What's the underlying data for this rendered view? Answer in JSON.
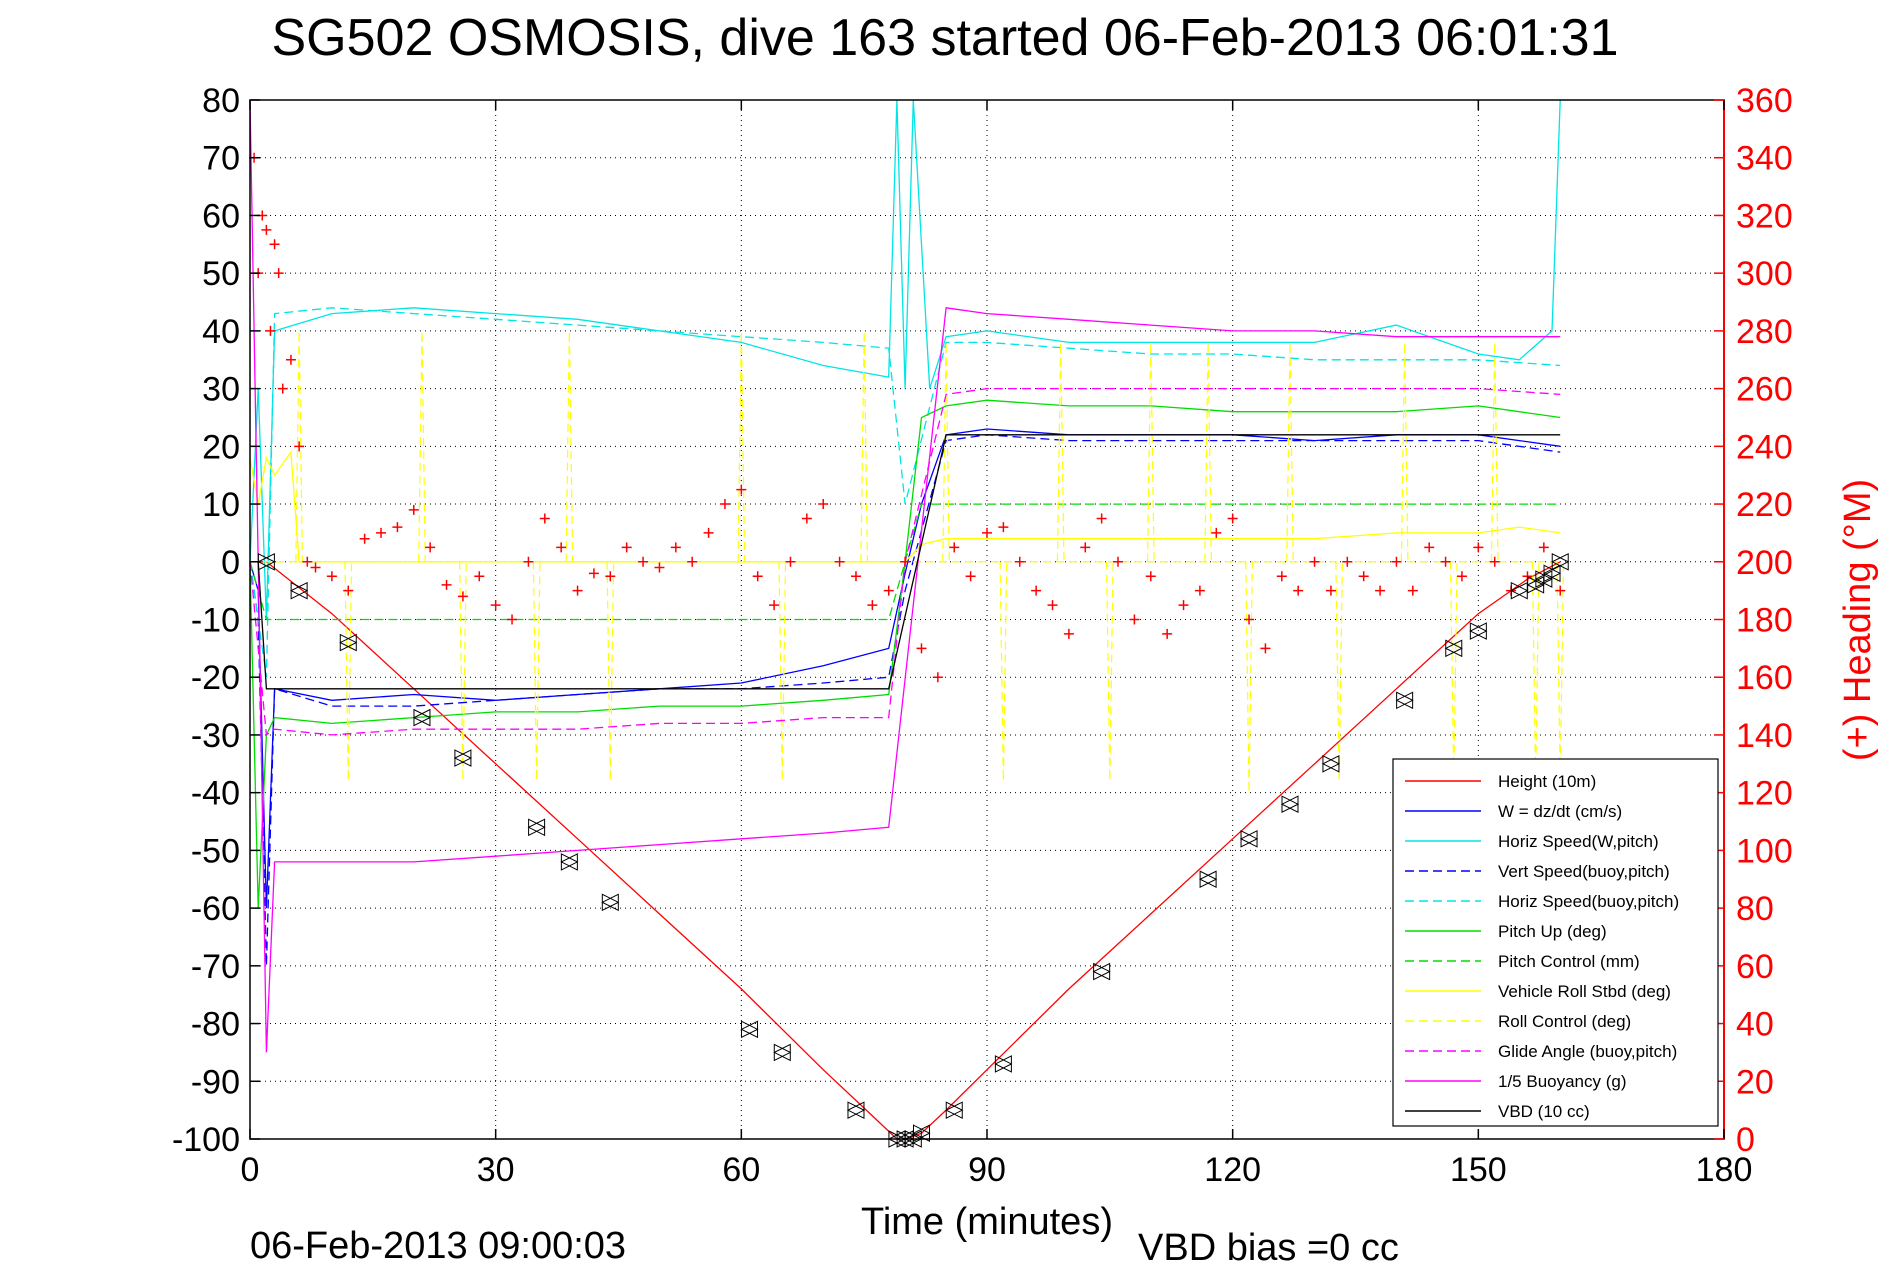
{
  "chart_data": {
    "type": "line",
    "title": "SG502 OSMOSIS, dive 163 started 06-Feb-2013 06:01:31",
    "xlabel": "Time (minutes)",
    "ylabel": "",
    "y2label": "(+) Heading (°M)",
    "footer_left": "06-Feb-2013 09:00:03",
    "footer_right": "VBD bias =0 cc",
    "xlim": [
      0,
      180
    ],
    "ylim": [
      -100,
      80
    ],
    "y2lim": [
      0,
      360
    ],
    "xticks": [
      0,
      30,
      60,
      90,
      120,
      150,
      180
    ],
    "yticks": [
      -100,
      -90,
      -80,
      -70,
      -60,
      -50,
      -40,
      -30,
      -20,
      -10,
      0,
      10,
      20,
      30,
      40,
      50,
      60,
      70,
      80
    ],
    "y2ticks": [
      0,
      20,
      40,
      60,
      80,
      100,
      120,
      140,
      160,
      180,
      200,
      220,
      240,
      260,
      280,
      300,
      320,
      340,
      360
    ],
    "grid": true,
    "legend_position": "bottom-right",
    "series": [
      {
        "name": "Height (10m)",
        "color": "#ff0000",
        "style": "solid",
        "x": [
          0,
          2,
          10,
          20,
          30,
          40,
          50,
          60,
          70,
          76,
          79,
          80,
          82,
          85,
          90,
          100,
          110,
          120,
          130,
          140,
          150,
          156,
          160
        ],
        "y": [
          0,
          0,
          -9,
          -22,
          -35,
          -48,
          -61,
          -74,
          -88,
          -96,
          -100,
          -100,
          -99,
          -95,
          -88,
          -74,
          -61,
          -48,
          -35,
          -22,
          -9,
          -3,
          0
        ]
      },
      {
        "name": "W = dz/dt (cm/s)",
        "color": "#0000ff",
        "style": "solid",
        "x": [
          0,
          1,
          2,
          3,
          10,
          20,
          30,
          40,
          50,
          60,
          70,
          78,
          80,
          82,
          85,
          90,
          100,
          110,
          120,
          130,
          140,
          150,
          155,
          160
        ],
        "y": [
          0,
          -5,
          -60,
          -22,
          -24,
          -23,
          -24,
          -23,
          -22,
          -21,
          -18,
          -15,
          -2,
          10,
          22,
          23,
          22,
          22,
          22,
          21,
          22,
          22,
          21,
          20
        ]
      },
      {
        "name": "Horiz Speed(W,pitch)",
        "color": "#00e5e5",
        "style": "solid",
        "x": [
          0,
          1,
          2,
          3,
          10,
          20,
          30,
          40,
          50,
          60,
          70,
          78,
          79,
          80,
          81,
          83,
          85,
          90,
          100,
          110,
          120,
          130,
          140,
          150,
          155,
          159,
          160
        ],
        "y": [
          0,
          30,
          -10,
          40,
          43,
          44,
          43,
          42,
          40,
          38,
          34,
          32,
          80,
          30,
          80,
          30,
          39,
          40,
          38,
          38,
          38,
          38,
          41,
          36,
          35,
          40,
          80
        ]
      },
      {
        "name": "Vert Speed(buoy,pitch)",
        "color": "#0000ff",
        "style": "dashed",
        "x": [
          0,
          1,
          2,
          3,
          10,
          20,
          30,
          40,
          50,
          60,
          70,
          78,
          80,
          85,
          90,
          100,
          110,
          120,
          130,
          140,
          150,
          160
        ],
        "y": [
          0,
          -10,
          -70,
          -22,
          -25,
          -25,
          -24,
          -23,
          -22,
          -22,
          -21,
          -20,
          -5,
          21,
          22,
          21,
          21,
          21,
          21,
          21,
          21,
          19
        ]
      },
      {
        "name": "Horiz Speed(buoy,pitch)",
        "color": "#00e5e5",
        "style": "dashed",
        "x": [
          0,
          2,
          3,
          10,
          20,
          30,
          40,
          50,
          60,
          70,
          78,
          80,
          85,
          90,
          100,
          110,
          120,
          130,
          140,
          150,
          160
        ],
        "y": [
          0,
          -20,
          43,
          44,
          43,
          42,
          41,
          40,
          39,
          38,
          37,
          10,
          38,
          38,
          37,
          36,
          36,
          35,
          35,
          35,
          34
        ]
      },
      {
        "name": "Pitch Up (deg)",
        "color": "#00dd00",
        "style": "solid",
        "x": [
          0,
          1,
          2,
          3,
          10,
          20,
          30,
          40,
          50,
          60,
          70,
          78,
          80,
          82,
          85,
          90,
          100,
          110,
          120,
          130,
          140,
          150,
          155,
          160
        ],
        "y": [
          0,
          -60,
          -30,
          -27,
          -28,
          -27,
          -26,
          -26,
          -25,
          -25,
          -24,
          -23,
          0,
          25,
          27,
          28,
          27,
          27,
          26,
          26,
          26,
          27,
          26,
          25
        ]
      },
      {
        "name": "Pitch Control (mm)",
        "color": "#00dd00",
        "style": "dashed",
        "x": [
          0,
          2,
          3,
          10,
          20,
          40,
          60,
          78,
          80,
          82,
          90,
          120,
          150,
          160
        ],
        "y": [
          0,
          -10,
          -10,
          -10,
          -10,
          -10,
          -10,
          -10,
          0,
          10,
          10,
          10,
          10,
          10
        ]
      },
      {
        "name": "Vehicle Roll Stbd (deg)",
        "color": "#ffff00",
        "style": "solid",
        "x": [
          0,
          1,
          2,
          3,
          5,
          6,
          10,
          20,
          30,
          40,
          50,
          60,
          70,
          78,
          80,
          82,
          85,
          90,
          100,
          110,
          120,
          130,
          140,
          150,
          155,
          160
        ],
        "y": [
          18,
          10,
          18,
          15,
          19,
          0,
          0,
          0,
          0,
          0,
          0,
          0,
          0,
          0,
          0,
          3,
          4,
          4,
          4,
          4,
          4,
          4,
          5,
          5,
          6,
          5
        ]
      },
      {
        "name": "Roll Control (deg)",
        "color": "#ffff00",
        "style": "dashed",
        "spikes_x": [
          6,
          12,
          21,
          26,
          35,
          39,
          44,
          60,
          65,
          75,
          85,
          92,
          99,
          105,
          110,
          117,
          122,
          127,
          133,
          141,
          147,
          152,
          157,
          160
        ],
        "spikes_y": [
          40,
          -38,
          40,
          -38,
          -38,
          40,
          -38,
          40,
          -38,
          40,
          38,
          -38,
          38,
          -38,
          38,
          38,
          -40,
          38,
          -38,
          38,
          -38,
          38,
          -38,
          -38
        ]
      },
      {
        "name": "Glide Angle (buoy,pitch)",
        "color": "#ff00ff",
        "style": "dashed",
        "x": [
          0,
          2,
          3,
          10,
          20,
          30,
          40,
          50,
          60,
          70,
          78,
          80,
          85,
          90,
          100,
          110,
          120,
          130,
          140,
          150,
          160
        ],
        "y": [
          0,
          -30,
          -29,
          -30,
          -29,
          -29,
          -29,
          -28,
          -28,
          -27,
          -27,
          0,
          29,
          30,
          30,
          30,
          30,
          30,
          30,
          30,
          29
        ]
      },
      {
        "name": "1/5 Buoyancy (g)",
        "color": "#ff00ff",
        "style": "solid",
        "x": [
          0,
          1,
          2,
          3,
          10,
          20,
          30,
          40,
          50,
          60,
          70,
          78,
          85,
          90,
          100,
          110,
          120,
          130,
          140,
          150,
          160
        ],
        "y": [
          80,
          0,
          -85,
          -52,
          -52,
          -52,
          -51,
          -50,
          -49,
          -48,
          -47,
          -46,
          44,
          43,
          42,
          41,
          40,
          40,
          39,
          39,
          39
        ]
      },
      {
        "name": "VBD (10 cc)",
        "color": "#000000",
        "style": "solid",
        "x": [
          0,
          1,
          2,
          3,
          78,
          85,
          160
        ],
        "y": [
          0,
          0,
          -22,
          -22,
          -22,
          22,
          22
        ]
      },
      {
        "name": "(+) Heading (°M)",
        "color": "#ff0000",
        "style": "marker-plus",
        "axis": "right",
        "x": [
          0.5,
          1,
          1.5,
          2,
          2.5,
          3,
          3.5,
          4,
          5,
          6,
          7,
          8,
          10,
          12,
          14,
          16,
          18,
          20,
          22,
          24,
          26,
          28,
          30,
          32,
          34,
          36,
          38,
          40,
          42,
          44,
          46,
          48,
          50,
          52,
          54,
          56,
          58,
          60,
          62,
          64,
          66,
          68,
          70,
          72,
          74,
          76,
          78,
          80,
          82,
          84,
          86,
          88,
          90,
          92,
          94,
          96,
          98,
          100,
          102,
          104,
          106,
          108,
          110,
          112,
          114,
          116,
          118,
          120,
          122,
          124,
          126,
          128,
          130,
          132,
          134,
          136,
          138,
          140,
          142,
          144,
          146,
          148,
          150,
          152,
          154,
          156,
          158,
          160
        ],
        "y": [
          340,
          300,
          320,
          315,
          280,
          310,
          300,
          260,
          270,
          240,
          200,
          198,
          195,
          190,
          208,
          210,
          212,
          218,
          205,
          192,
          188,
          195,
          185,
          180,
          200,
          215,
          205,
          190,
          196,
          195,
          205,
          200,
          198,
          205,
          200,
          210,
          220,
          225,
          195,
          185,
          200,
          215,
          220,
          200,
          195,
          185,
          190,
          200,
          170,
          160,
          205,
          195,
          210,
          212,
          200,
          190,
          185,
          175,
          205,
          215,
          200,
          180,
          195,
          175,
          185,
          190,
          210,
          215,
          180,
          170,
          195,
          190,
          200,
          190,
          200,
          195,
          190,
          200,
          190,
          205,
          200,
          195,
          205,
          200,
          190,
          195,
          205,
          190
        ]
      }
    ],
    "glider_markers": {
      "symbol": "triangle-bowtie",
      "color": "#000000",
      "x": [
        2,
        6,
        12,
        21,
        26,
        35,
        39,
        44,
        61,
        65,
        74,
        79,
        80,
        81,
        82,
        86,
        92,
        104,
        117,
        122,
        127,
        132,
        141,
        147,
        150,
        155,
        157,
        158,
        159,
        160
      ],
      "y": [
        0,
        -5,
        -14,
        -27,
        -34,
        -46,
        -52,
        -59,
        -81,
        -85,
        -95,
        -100,
        -100,
        -100,
        -99,
        -95,
        -87,
        -71,
        -55,
        -48,
        -42,
        -35,
        -24,
        -15,
        -12,
        -5,
        -4,
        -3,
        -2,
        0
      ]
    }
  }
}
